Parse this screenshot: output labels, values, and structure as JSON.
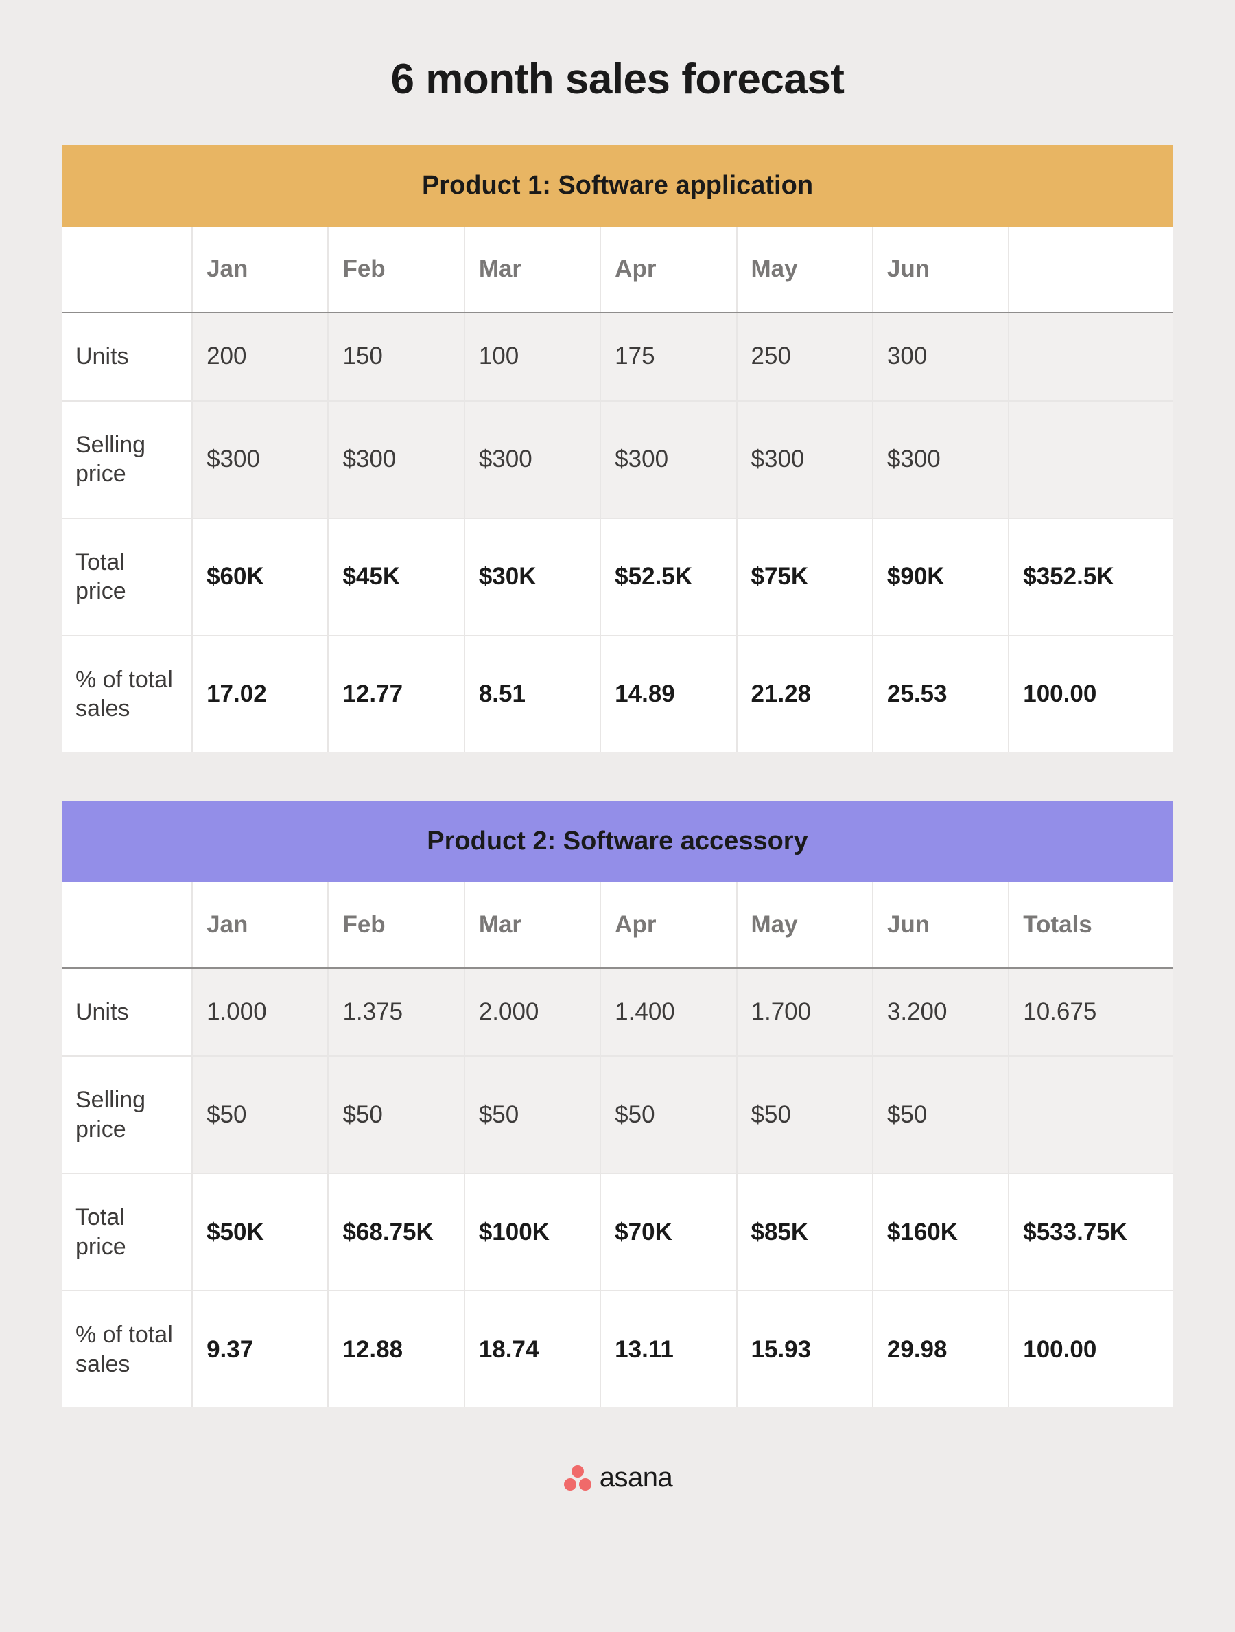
{
  "page_title": "6 month sales forecast",
  "logo_text": "asana",
  "logo_dot_color": "#f06a6a",
  "colors": {
    "background": "#eeeceb",
    "header_orange": "#e8b563",
    "header_purple": "#938ee8",
    "shaded_row": "#f2f0ef",
    "border": "#e8e6e5",
    "header_border": "#8f8d8c",
    "text_dark": "#1a1a1a",
    "text_body": "#3d3b3a",
    "text_muted": "#7a7877"
  },
  "product1": {
    "title": "Product 1: Software application",
    "header_color": "orange",
    "columns": [
      "",
      "Jan",
      "Feb",
      "Mar",
      "Apr",
      "May",
      "Jun",
      ""
    ],
    "rows": [
      {
        "label": "Units",
        "shaded": true,
        "bold": false,
        "cells": [
          "200",
          "150",
          "100",
          "175",
          "250",
          "300",
          ""
        ]
      },
      {
        "label": "Selling price",
        "shaded": true,
        "bold": false,
        "cells": [
          "$300",
          "$300",
          "$300",
          "$300",
          "$300",
          "$300",
          ""
        ]
      },
      {
        "label": "Total price",
        "shaded": false,
        "bold": true,
        "cells": [
          "$60K",
          "$45K",
          "$30K",
          "$52.5K",
          "$75K",
          "$90K",
          "$352.5K"
        ]
      },
      {
        "label": "% of total sales",
        "shaded": false,
        "bold": true,
        "cells": [
          "17.02",
          "12.77",
          "8.51",
          "14.89",
          "21.28",
          "25.53",
          "100.00"
        ]
      }
    ]
  },
  "product2": {
    "title": "Product 2: Software accessory",
    "header_color": "purple",
    "columns": [
      "",
      "Jan",
      "Feb",
      "Mar",
      "Apr",
      "May",
      "Jun",
      "Totals"
    ],
    "rows": [
      {
        "label": "Units",
        "shaded": true,
        "bold": false,
        "cells": [
          "1.000",
          "1.375",
          "2.000",
          "1.400",
          "1.700",
          "3.200",
          "10.675"
        ]
      },
      {
        "label": "Selling price",
        "shaded": true,
        "bold": false,
        "cells": [
          "$50",
          "$50",
          "$50",
          "$50",
          "$50",
          "$50",
          ""
        ]
      },
      {
        "label": "Total price",
        "shaded": false,
        "bold": true,
        "cells": [
          "$50K",
          "$68.75K",
          "$100K",
          "$70K",
          "$85K",
          "$160K",
          "$533.75K"
        ]
      },
      {
        "label": "% of total sales",
        "shaded": false,
        "bold": true,
        "cells": [
          "9.37",
          "12.88",
          "18.74",
          "13.11",
          "15.93",
          "29.98",
          "100.00"
        ]
      }
    ]
  }
}
